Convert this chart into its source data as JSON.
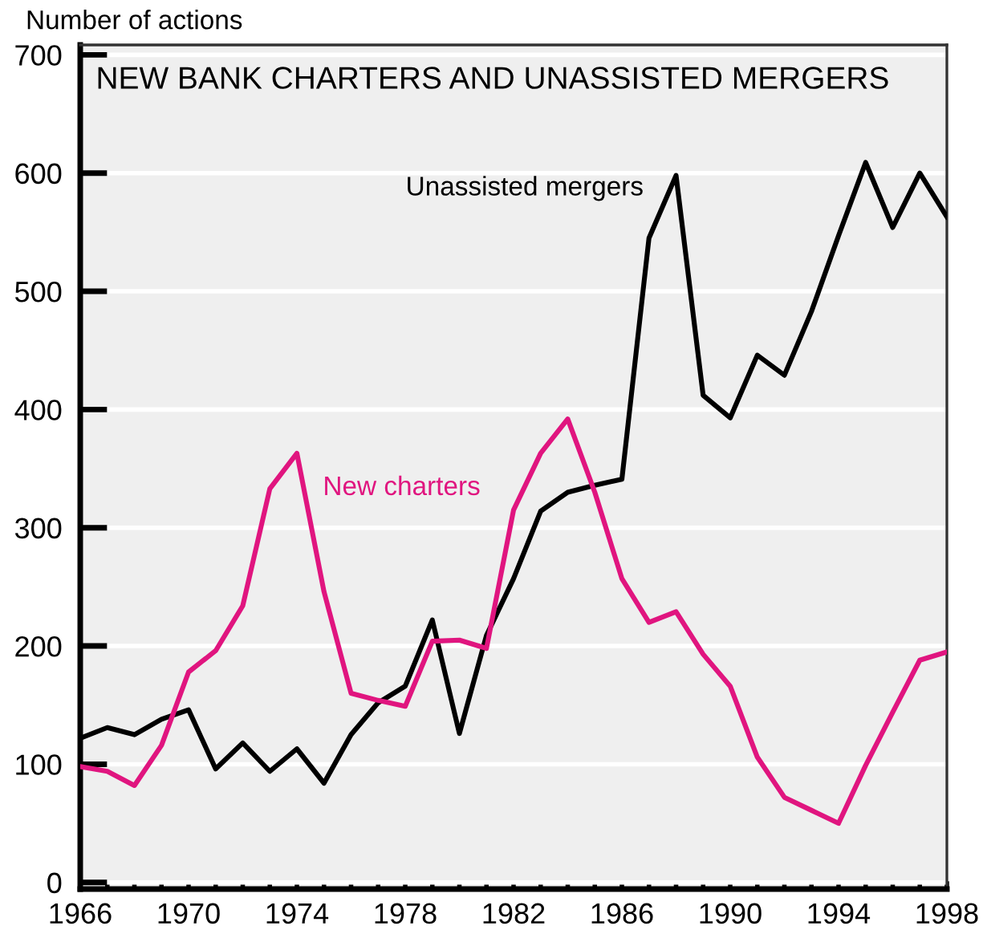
{
  "chart_data": {
    "type": "line",
    "title": "NEW BANK CHARTERS AND UNASSISTED MERGERS",
    "ylabel": "Number of actions",
    "x": [
      1966,
      1967,
      1968,
      1969,
      1970,
      1971,
      1972,
      1973,
      1974,
      1975,
      1976,
      1977,
      1978,
      1979,
      1980,
      1981,
      1982,
      1983,
      1984,
      1985,
      1986,
      1987,
      1988,
      1989,
      1990,
      1991,
      1992,
      1993,
      1994,
      1995,
      1996,
      1997,
      1998
    ],
    "series": [
      {
        "name": "Unassisted mergers",
        "color": "#000000",
        "values": [
          122,
          131,
          125,
          138,
          146,
          96,
          118,
          94,
          113,
          84,
          125,
          152,
          166,
          222,
          126,
          209,
          257,
          314,
          330,
          336,
          341,
          545,
          598,
          412,
          393,
          446,
          429,
          483,
          547,
          609,
          554,
          600,
          563
        ]
      },
      {
        "name": "New charters",
        "color": "#e0157f",
        "values": [
          98,
          94,
          82,
          116,
          178,
          196,
          234,
          333,
          363,
          246,
          160,
          154,
          149,
          204,
          205,
          198,
          315,
          363,
          392,
          330,
          257,
          220,
          229,
          193,
          166,
          106,
          72,
          61,
          50,
          99,
          144,
          188,
          195
        ]
      }
    ],
    "xlim": [
      1966,
      1998
    ],
    "ylim": [
      0,
      700
    ],
    "xticks": [
      1966,
      {
        "value": 1967,
        "label": null
      },
      {
        "value": 1968,
        "label": null
      },
      {
        "value": 1969,
        "label": null
      },
      1970,
      {
        "value": 1971,
        "label": null
      },
      {
        "value": 1972,
        "label": null
      },
      {
        "value": 1973,
        "label": null
      },
      1974,
      {
        "value": 1975,
        "label": null
      },
      {
        "value": 1976,
        "label": null
      },
      {
        "value": 1977,
        "label": null
      },
      1978,
      {
        "value": 1979,
        "label": null
      },
      {
        "value": 1980,
        "label": null
      },
      {
        "value": 1981,
        "label": null
      },
      1982,
      {
        "value": 1983,
        "label": null
      },
      {
        "value": 1984,
        "label": null
      },
      {
        "value": 1985,
        "label": null
      },
      1986,
      {
        "value": 1987,
        "label": null
      },
      {
        "value": 1988,
        "label": null
      },
      {
        "value": 1989,
        "label": null
      },
      1990,
      {
        "value": 1991,
        "label": null
      },
      {
        "value": 1992,
        "label": null
      },
      {
        "value": 1993,
        "label": null
      },
      1994,
      {
        "value": 1995,
        "label": null
      },
      {
        "value": 1996,
        "label": null
      },
      {
        "value": 1997,
        "label": null
      },
      1998
    ],
    "yticks": [
      0,
      100,
      200,
      300,
      400,
      500,
      600,
      700
    ],
    "grid": "y",
    "legend": false,
    "marker": "none",
    "line_style": "solid"
  }
}
